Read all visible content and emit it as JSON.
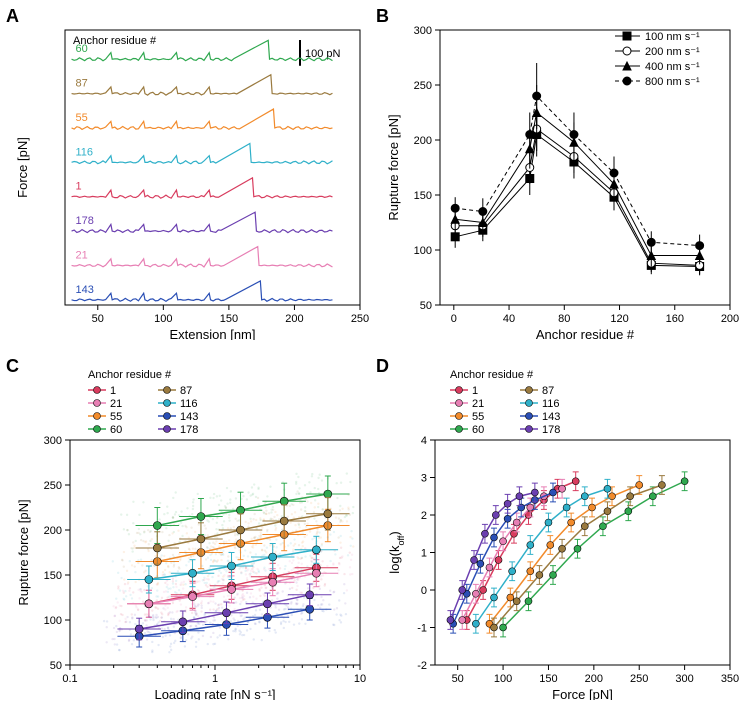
{
  "colors": {
    "r1": "#d83c5e",
    "r21": "#e77fb4",
    "r55": "#f28b2c",
    "r60": "#2fa84f",
    "r87": "#9a7a3f",
    "r116": "#2fb0c9",
    "r143": "#2a4fb5",
    "r178": "#6b3fb0",
    "black": "#000000",
    "bg": "#ffffff"
  },
  "panelA": {
    "label": "A",
    "xlabel": "Extension [nm]",
    "ylabel": "Force [pN]",
    "inset_label": "Anchor residue #",
    "scale_bar_label": "100 pN",
    "xlim": [
      25,
      250
    ],
    "xticks": [
      50,
      100,
      150,
      200,
      250
    ],
    "trace_order": [
      "60",
      "87",
      "55",
      "116",
      "1",
      "178",
      "21",
      "143"
    ],
    "trace_colors": {
      "60": "r60",
      "87": "r87",
      "55": "r55",
      "116": "r116",
      "1": "r1",
      "178": "r178",
      "21": "r21",
      "143": "r143"
    },
    "trace_offsets": {
      "60": 0,
      "87": 1,
      "55": 2,
      "116": 3,
      "1": 4,
      "178": 5,
      "21": 6,
      "143": 7
    }
  },
  "panelB": {
    "label": "B",
    "xlabel": "Anchor residue #",
    "ylabel": "Rupture force [pN]",
    "xlim": [
      -10,
      200
    ],
    "ylim": [
      50,
      300
    ],
    "xticks": [
      0,
      40,
      80,
      120,
      160,
      200
    ],
    "yticks": [
      50,
      100,
      150,
      200,
      250,
      300
    ],
    "legend": [
      {
        "label": "100 nm s⁻¹",
        "marker": "square",
        "dash": "solid"
      },
      {
        "label": "200 nm s⁻¹",
        "marker": "ocircle",
        "dash": "solid"
      },
      {
        "label": "400 nm s⁻¹",
        "marker": "triangle",
        "dash": "solid"
      },
      {
        "label": "800 nm s⁻¹",
        "marker": "circle",
        "dash": "dashed"
      }
    ],
    "x_points": [
      1,
      21,
      55,
      60,
      87,
      116,
      143,
      178
    ],
    "series": {
      "100": [
        112,
        118,
        165,
        205,
        180,
        148,
        86,
        85
      ],
      "200": [
        122,
        122,
        175,
        210,
        185,
        152,
        88,
        86
      ],
      "400": [
        128,
        125,
        192,
        225,
        198,
        160,
        95,
        95
      ],
      "800": [
        138,
        135,
        205,
        240,
        205,
        170,
        107,
        104
      ]
    },
    "errors": {
      "100": [
        10,
        10,
        15,
        20,
        15,
        12,
        8,
        8
      ],
      "200": [
        10,
        10,
        15,
        20,
        15,
        12,
        8,
        8
      ],
      "400": [
        10,
        10,
        18,
        25,
        18,
        12,
        10,
        8
      ],
      "800": [
        10,
        12,
        20,
        30,
        20,
        15,
        10,
        10
      ]
    }
  },
  "panelC": {
    "label": "C",
    "xlabel": "Loading rate [nN s⁻¹]",
    "ylabel": "Rupture force [pN]",
    "xlim_log": [
      -1,
      1
    ],
    "xticks": [
      0.1,
      1,
      10
    ],
    "ylim": [
      50,
      300
    ],
    "yticks": [
      50,
      100,
      150,
      200,
      250,
      300
    ],
    "legend_title": "Anchor residue #",
    "legend_cols": [
      [
        {
          "id": "1",
          "c": "r1"
        },
        {
          "id": "21",
          "c": "r21"
        },
        {
          "id": "55",
          "c": "r55"
        },
        {
          "id": "60",
          "c": "r60"
        }
      ],
      [
        {
          "id": "87",
          "c": "r87"
        },
        {
          "id": "116",
          "c": "r116"
        },
        {
          "id": "143",
          "c": "r143"
        },
        {
          "id": "178",
          "c": "r178"
        }
      ]
    ],
    "series": {
      "60": {
        "c": "r60",
        "pts": [
          [
            0.4,
            205
          ],
          [
            0.8,
            215
          ],
          [
            1.5,
            222
          ],
          [
            3.0,
            232
          ],
          [
            6.0,
            240
          ]
        ],
        "ey": 20,
        "ex": 0.15
      },
      "87": {
        "c": "r87",
        "pts": [
          [
            0.4,
            180
          ],
          [
            0.8,
            190
          ],
          [
            1.5,
            200
          ],
          [
            3.0,
            210
          ],
          [
            6.0,
            218
          ]
        ],
        "ey": 18,
        "ex": 0.15
      },
      "55": {
        "c": "r55",
        "pts": [
          [
            0.4,
            165
          ],
          [
            0.8,
            175
          ],
          [
            1.5,
            185
          ],
          [
            3.0,
            195
          ],
          [
            6.0,
            205
          ]
        ],
        "ey": 18,
        "ex": 0.15
      },
      "116": {
        "c": "r116",
        "pts": [
          [
            0.35,
            145
          ],
          [
            0.7,
            152
          ],
          [
            1.3,
            160
          ],
          [
            2.5,
            170
          ],
          [
            5.0,
            178
          ]
        ],
        "ey": 15,
        "ex": 0.15
      },
      "1": {
        "c": "r1",
        "pts": [
          [
            0.35,
            118
          ],
          [
            0.7,
            128
          ],
          [
            1.3,
            138
          ],
          [
            2.5,
            148
          ],
          [
            5.0,
            158
          ]
        ],
        "ey": 15,
        "ex": 0.15
      },
      "21": {
        "c": "r21",
        "pts": [
          [
            0.35,
            118
          ],
          [
            0.7,
            126
          ],
          [
            1.3,
            134
          ],
          [
            2.5,
            142
          ],
          [
            5.0,
            152
          ]
        ],
        "ey": 15,
        "ex": 0.15
      },
      "178": {
        "c": "r178",
        "pts": [
          [
            0.3,
            90
          ],
          [
            0.6,
            98
          ],
          [
            1.2,
            108
          ],
          [
            2.3,
            118
          ],
          [
            4.5,
            128
          ]
        ],
        "ey": 12,
        "ex": 0.15
      },
      "143": {
        "c": "r143",
        "pts": [
          [
            0.3,
            82
          ],
          [
            0.6,
            88
          ],
          [
            1.2,
            95
          ],
          [
            2.3,
            103
          ],
          [
            4.5,
            112
          ]
        ],
        "ey": 12,
        "ex": 0.15
      }
    }
  },
  "panelD": {
    "label": "D",
    "xlabel": "Force [pN]",
    "ylabel": "log(k_off)",
    "xlim": [
      25,
      350
    ],
    "xticks": [
      50,
      100,
      150,
      200,
      250,
      300,
      350
    ],
    "ylim": [
      -2,
      4
    ],
    "yticks": [
      -2,
      -1,
      0,
      1,
      2,
      3,
      4
    ],
    "legend_title": "Anchor residue #",
    "legend_cols": [
      [
        {
          "id": "1",
          "c": "r1"
        },
        {
          "id": "21",
          "c": "r21"
        },
        {
          "id": "55",
          "c": "r55"
        },
        {
          "id": "60",
          "c": "r60"
        }
      ],
      [
        {
          "id": "87",
          "c": "r87"
        },
        {
          "id": "116",
          "c": "r116"
        },
        {
          "id": "143",
          "c": "r143"
        },
        {
          "id": "178",
          "c": "r178"
        }
      ]
    ],
    "series": {
      "178": {
        "c": "r178",
        "pts": [
          [
            42,
            -0.8
          ],
          [
            55,
            0.0
          ],
          [
            68,
            0.8
          ],
          [
            80,
            1.5
          ],
          [
            92,
            2.0
          ],
          [
            105,
            2.3
          ],
          [
            118,
            2.5
          ],
          [
            135,
            2.6
          ]
        ],
        "ey": 0.25
      },
      "143": {
        "c": "r143",
        "pts": [
          [
            45,
            -0.9
          ],
          [
            60,
            -0.1
          ],
          [
            75,
            0.7
          ],
          [
            90,
            1.4
          ],
          [
            105,
            1.9
          ],
          [
            120,
            2.2
          ],
          [
            135,
            2.4
          ],
          [
            155,
            2.6
          ]
        ],
        "ey": 0.25
      },
      "21": {
        "c": "r21",
        "pts": [
          [
            55,
            -0.8
          ],
          [
            70,
            -0.1
          ],
          [
            85,
            0.6
          ],
          [
            100,
            1.3
          ],
          [
            115,
            1.8
          ],
          [
            130,
            2.2
          ],
          [
            145,
            2.5
          ],
          [
            165,
            2.7
          ]
        ],
        "ey": 0.25
      },
      "1": {
        "c": "r1",
        "pts": [
          [
            60,
            -0.8
          ],
          [
            78,
            0.0
          ],
          [
            95,
            0.8
          ],
          [
            112,
            1.5
          ],
          [
            128,
            2.0
          ],
          [
            145,
            2.4
          ],
          [
            160,
            2.7
          ],
          [
            180,
            2.9
          ]
        ],
        "ey": 0.25
      },
      "116": {
        "c": "r116",
        "pts": [
          [
            70,
            -0.9
          ],
          [
            90,
            -0.2
          ],
          [
            110,
            0.5
          ],
          [
            130,
            1.2
          ],
          [
            150,
            1.8
          ],
          [
            170,
            2.2
          ],
          [
            190,
            2.5
          ],
          [
            215,
            2.7
          ]
        ],
        "ey": 0.25
      },
      "55": {
        "c": "r55",
        "pts": [
          [
            85,
            -0.9
          ],
          [
            108,
            -0.2
          ],
          [
            130,
            0.5
          ],
          [
            152,
            1.2
          ],
          [
            175,
            1.8
          ],
          [
            198,
            2.2
          ],
          [
            220,
            2.5
          ],
          [
            250,
            2.8
          ]
        ],
        "ey": 0.25
      },
      "87": {
        "c": "r87",
        "pts": [
          [
            90,
            -1.0
          ],
          [
            115,
            -0.3
          ],
          [
            140,
            0.4
          ],
          [
            165,
            1.1
          ],
          [
            190,
            1.7
          ],
          [
            215,
            2.1
          ],
          [
            240,
            2.5
          ],
          [
            275,
            2.8
          ]
        ],
        "ey": 0.25
      },
      "60": {
        "c": "r60",
        "pts": [
          [
            100,
            -1.0
          ],
          [
            128,
            -0.3
          ],
          [
            155,
            0.4
          ],
          [
            182,
            1.1
          ],
          [
            210,
            1.7
          ],
          [
            238,
            2.1
          ],
          [
            265,
            2.5
          ],
          [
            300,
            2.9
          ]
        ],
        "ey": 0.25
      }
    }
  }
}
